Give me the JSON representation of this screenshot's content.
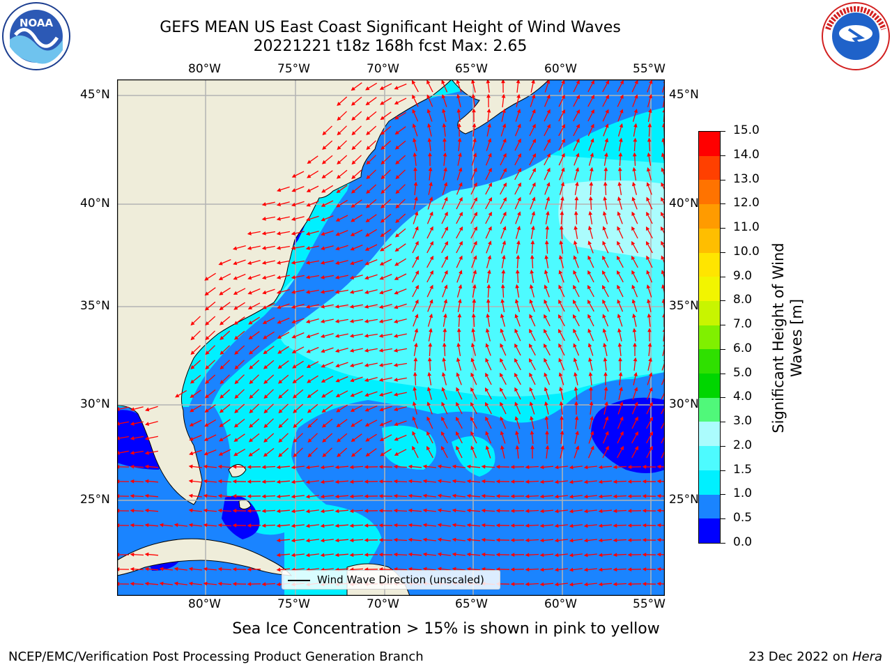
{
  "header": {
    "title_line1": "GEFS MEAN US East Coast Significant Height of Wind Waves",
    "title_line2": "20221221 t18z 168h fcst   Max: 2.65"
  },
  "logos": {
    "noaa_icon": "noaa-logo",
    "noaa_text": "NOAA",
    "noaa_ring": "NATIONAL OCEANIC AND ATMOSPHERIC ADMINISTRATION · U.S. DEPARTMENT OF COMMERCE",
    "nws_icon": "nws-logo",
    "nws_ring": "NATIONAL WEATHER SERVICE"
  },
  "map": {
    "lon_labels": [
      "80°W",
      "75°W",
      "70°W",
      "65°W",
      "60°W",
      "55°W"
    ],
    "lat_labels": [
      "45°N",
      "40°N",
      "35°N",
      "30°N",
      "25°N"
    ],
    "land_color": "#efedda",
    "ocean_colors": {
      "0.0-0.5": "#0000ff",
      "0.5-1.0": "#1a84ff",
      "1.0-1.5": "#00f0ff",
      "1.5-2.0": "#4dfbff",
      "2.0-3.0": "#abfcfd"
    },
    "arrow_color": "#ff0000",
    "legend_text": "Wind Wave Direction (unscaled)"
  },
  "colorbar": {
    "title": "Significant Height of Wind Waves [m]",
    "title_line1": "Significant Height of Wind",
    "title_line2": "Waves [m]",
    "ticks": [
      "0.0",
      "0.5",
      "1.0",
      "1.5",
      "2.0",
      "3.0",
      "4.0",
      "5.0",
      "6.0",
      "7.0",
      "8.0",
      "9.0",
      "10.0",
      "11.0",
      "12.0",
      "13.0",
      "14.0",
      "15.0"
    ],
    "colors": [
      "#0000ff",
      "#1a84ff",
      "#00f0ff",
      "#4dfbff",
      "#abfcfd",
      "#50f87a",
      "#00d600",
      "#2fe000",
      "#80f000",
      "#c8f500",
      "#f2f500",
      "#ffe500",
      "#ffbe00",
      "#ff9b00",
      "#ff7300",
      "#ff4000",
      "#ff0000"
    ]
  },
  "note": "Sea Ice Concentration > 15% is shown in pink to yellow",
  "footer": {
    "left": "NCEP/EMC/Verification Post Processing Product Generation Branch",
    "right_prefix": "23 Dec 2022 on ",
    "right_host": "Hera"
  }
}
